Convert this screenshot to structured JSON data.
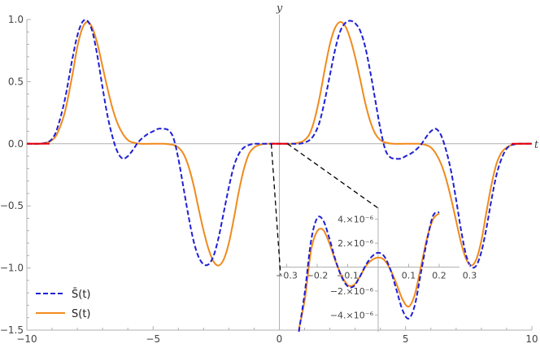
{
  "chart_data": [
    {
      "type": "line",
      "xlabel": "t",
      "ylabel": "y",
      "xlim": [
        -10,
        10
      ],
      "ylim": [
        -1.5,
        1.0
      ],
      "x_ticks": [
        -10,
        -5,
        0,
        5,
        10
      ],
      "x_tick_labels": [
        "−10",
        "−5",
        "0",
        "5",
        "10"
      ],
      "y_ticks": [
        -1.5,
        -1.0,
        -0.5,
        0.0,
        0.5,
        1.0
      ],
      "y_tick_labels": [
        "−1.5",
        "−1.0",
        "−0.5",
        "0.0",
        "0.5",
        "1.0"
      ],
      "grid": false,
      "legend_position": "bottom-left",
      "series": [
        {
          "name": "S̄(t)",
          "color": "#1f1fd6",
          "style": "dashed",
          "x": [
            -10,
            -9.5,
            -9.2,
            -9.0,
            -8.8,
            -8.5,
            -8.2,
            -8.0,
            -7.8,
            -7.6,
            -7.4,
            -7.2,
            -7.0,
            -6.8,
            -6.6,
            -6.4,
            -6.2,
            -6.0,
            -5.8,
            -5.6,
            -5.4,
            -5.2,
            -5.0,
            -4.8,
            -4.6,
            -4.4,
            -4.2,
            -4.0,
            -3.8,
            -3.6,
            -3.4,
            -3.2,
            -3.0,
            -2.8,
            -2.6,
            -2.4,
            -2.2,
            -2.0,
            -1.8,
            -1.6,
            -1.4,
            -1.2,
            -1.0,
            -0.8,
            -0.5,
            0,
            0.5,
            0.8,
            1.0,
            1.2,
            1.4,
            1.6,
            1.8,
            2.0,
            2.2,
            2.4,
            2.6,
            2.8,
            3.0,
            3.2,
            3.4,
            3.6,
            3.8,
            4.0,
            4.2,
            4.4,
            4.6,
            4.8,
            5.0,
            5.2,
            5.4,
            5.6,
            5.8,
            6.0,
            6.2,
            6.4,
            6.6,
            6.8,
            7.0,
            7.2,
            7.4,
            7.6,
            7.8,
            8.0,
            8.2,
            8.4,
            8.6,
            8.8,
            9.0,
            9.2,
            9.5,
            10
          ],
          "y": [
            0,
            0,
            0.01,
            0.04,
            0.12,
            0.35,
            0.68,
            0.87,
            0.98,
            0.99,
            0.9,
            0.7,
            0.45,
            0.22,
            0.05,
            -0.07,
            -0.12,
            -0.1,
            -0.05,
            0.01,
            0.05,
            0.08,
            0.1,
            0.12,
            0.12,
            0.11,
            0.05,
            -0.12,
            -0.35,
            -0.58,
            -0.78,
            -0.91,
            -0.97,
            -0.97,
            -0.9,
            -0.75,
            -0.55,
            -0.35,
            -0.18,
            -0.08,
            -0.03,
            -0.01,
            0,
            0,
            0,
            0,
            0,
            0,
            0.01,
            0.03,
            0.08,
            0.18,
            0.35,
            0.55,
            0.75,
            0.9,
            0.97,
            0.99,
            0.97,
            0.91,
            0.78,
            0.58,
            0.35,
            0.12,
            -0.05,
            -0.11,
            -0.12,
            -0.12,
            -0.1,
            -0.08,
            -0.05,
            -0.01,
            0.05,
            0.1,
            0.12,
            0.07,
            -0.05,
            -0.22,
            -0.45,
            -0.7,
            -0.9,
            -0.99,
            -0.98,
            -0.87,
            -0.68,
            -0.45,
            -0.25,
            -0.12,
            -0.04,
            -0.01,
            0,
            0
          ]
        },
        {
          "name": "S(t)",
          "color": "#f08a1c",
          "style": "solid",
          "x": [
            -10,
            -9.5,
            -9.2,
            -9.0,
            -8.8,
            -8.5,
            -8.2,
            -8.0,
            -7.8,
            -7.6,
            -7.4,
            -7.2,
            -7.0,
            -6.8,
            -6.6,
            -6.4,
            -6.2,
            -6.0,
            -5.8,
            -5.5,
            -5.0,
            -4.6,
            -4.2,
            -4.0,
            -3.8,
            -3.6,
            -3.4,
            -3.2,
            -3.0,
            -2.8,
            -2.6,
            -2.4,
            -2.2,
            -2.0,
            -1.8,
            -1.6,
            -1.4,
            -1.2,
            -1.0,
            -0.8,
            -0.5,
            0,
            0.5,
            0.8,
            1.0,
            1.2,
            1.4,
            1.6,
            1.8,
            2.0,
            2.2,
            2.4,
            2.6,
            2.8,
            3.0,
            3.2,
            3.4,
            3.6,
            3.8,
            4.0,
            4.2,
            4.5,
            5.0,
            5.5,
            5.8,
            6.0,
            6.2,
            6.4,
            6.6,
            6.8,
            7.0,
            7.2,
            7.4,
            7.6,
            7.8,
            8.0,
            8.2,
            8.4,
            8.6,
            8.8,
            9.0,
            9.2,
            9.5,
            10
          ],
          "y": [
            0,
            0,
            0.01,
            0.03,
            0.08,
            0.25,
            0.55,
            0.78,
            0.93,
            0.98,
            0.93,
            0.8,
            0.62,
            0.44,
            0.28,
            0.16,
            0.08,
            0.03,
            0.01,
            0,
            0,
            0,
            -0.01,
            -0.03,
            -0.08,
            -0.18,
            -0.33,
            -0.52,
            -0.7,
            -0.85,
            -0.95,
            -0.98,
            -0.93,
            -0.8,
            -0.6,
            -0.38,
            -0.2,
            -0.08,
            -0.03,
            -0.01,
            0,
            0,
            0,
            0.01,
            0.03,
            0.08,
            0.2,
            0.38,
            0.6,
            0.8,
            0.93,
            0.98,
            0.95,
            0.85,
            0.7,
            0.52,
            0.33,
            0.18,
            0.08,
            0.03,
            0.01,
            0,
            0,
            0,
            -0.01,
            -0.03,
            -0.08,
            -0.16,
            -0.28,
            -0.44,
            -0.62,
            -0.8,
            -0.93,
            -0.98,
            -0.93,
            -0.78,
            -0.55,
            -0.33,
            -0.16,
            -0.07,
            -0.03,
            -0.01,
            0,
            0
          ]
        }
      ]
    },
    {
      "type": "line",
      "role": "inset",
      "xlim": [
        -0.32,
        0.32
      ],
      "ylim": [
        -5.4e-06,
        5e-06
      ],
      "x_ticks": [
        -0.3,
        -0.2,
        -0.1,
        0.1,
        0.2,
        0.3
      ],
      "x_tick_labels": [
        "−0.3",
        "−0.2",
        "−0.1",
        "0.1",
        "0.2",
        "0.3"
      ],
      "y_ticks": [
        4e-06,
        2e-06,
        -2e-06,
        -4e-06
      ],
      "y_tick_labels": [
        "4.×10⁻⁶",
        "2.×10⁻⁶",
        "−2.×10⁻⁶",
        "−4.×10⁻⁶"
      ],
      "series": [
        {
          "name": "S̄(t)",
          "color": "#1f1fd6",
          "style": "dashed",
          "x": [
            -0.26,
            -0.24,
            -0.22,
            -0.2,
            -0.18,
            -0.16,
            -0.14,
            -0.12,
            -0.1,
            -0.08,
            -0.06,
            -0.04,
            -0.02,
            0.0,
            0.02,
            0.04,
            0.06,
            0.08,
            0.1,
            0.12,
            0.14,
            0.16,
            0.18,
            0.2
          ],
          "y": [
            -5.4e-06,
            -2e-06,
            2.2e-06,
            4.1e-06,
            3.9e-06,
            2.4e-06,
            6e-07,
            -8e-07,
            -1.6e-06,
            -1.6e-06,
            -8e-07,
            2e-07,
            9e-07,
            1.2e-06,
            9e-07,
            -2e-07,
            -1.9e-06,
            -3.6e-06,
            -4.3e-06,
            -3.2e-06,
            -5e-07,
            2.2e-06,
            4.3e-06,
            4.6e-06
          ]
        },
        {
          "name": "S(t)",
          "color": "#f08a1c",
          "style": "solid",
          "x": [
            -0.26,
            -0.24,
            -0.22,
            -0.2,
            -0.18,
            -0.16,
            -0.14,
            -0.12,
            -0.1,
            -0.08,
            -0.06,
            -0.04,
            -0.02,
            0.0,
            0.02,
            0.04,
            0.06,
            0.08,
            0.1,
            0.12,
            0.14,
            0.16,
            0.18,
            0.2
          ],
          "y": [
            -5.2e-06,
            -2.6e-06,
            1.4e-06,
            3e-06,
            3.1e-06,
            2e-06,
            5e-07,
            -7e-07,
            -1.5e-06,
            -1.5e-06,
            -8e-07,
            1e-07,
            6e-07,
            8e-07,
            6e-07,
            -2e-07,
            -1.4e-06,
            -2.7e-06,
            -3.3e-06,
            -2.3e-06,
            0.0,
            2.4e-06,
            4e-06,
            4.5e-06
          ]
        }
      ]
    }
  ],
  "legend": [
    {
      "label": "S̄(t)",
      "color": "#1f1fd6",
      "style": "dashed"
    },
    {
      "label": "S(t)",
      "color": "#f08a1c",
      "style": "solid"
    }
  ],
  "colors": {
    "axis": "#b0b0b0",
    "zoom_region": "#e8000b",
    "zoom_guides": "#000000"
  }
}
